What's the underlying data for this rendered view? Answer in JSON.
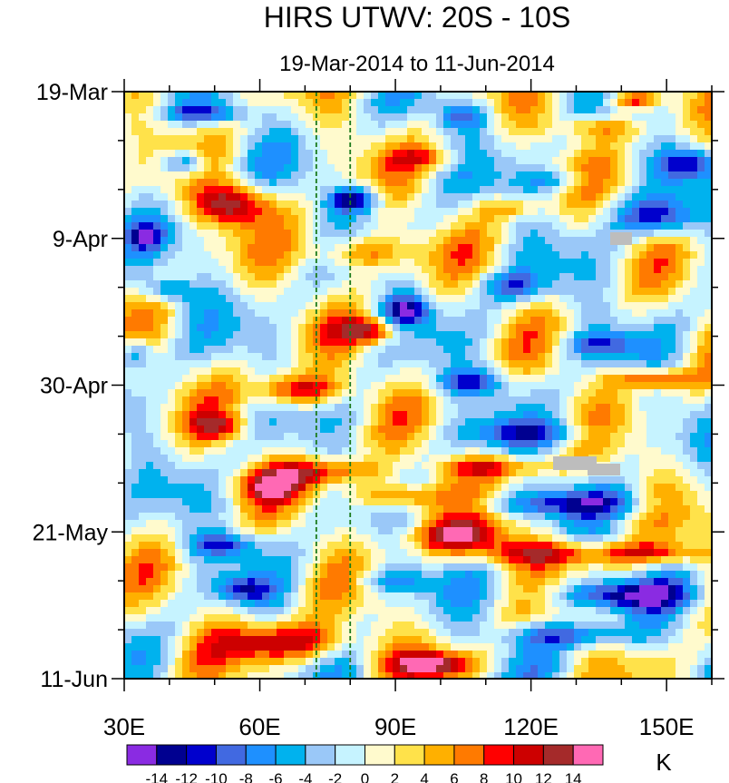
{
  "chart_data": {
    "type": "heatmap",
    "title": "HIRS UTWV: 20S - 10S",
    "subtitle": "19-Mar-2014 to 11-Jun-2014",
    "x_ticks": [
      {
        "label": "30E",
        "value": 30
      },
      {
        "label": "60E",
        "value": 60
      },
      {
        "label": "90E",
        "value": 90
      },
      {
        "label": "120E",
        "value": 120
      },
      {
        "label": "150E",
        "value": 150
      }
    ],
    "x_range": [
      30,
      160
    ],
    "y_ticks": [
      {
        "label": "19-Mar",
        "day": 0
      },
      {
        "label": "9-Apr",
        "day": 21
      },
      {
        "label": "30-Apr",
        "day": 42
      },
      {
        "label": "21-May",
        "day": 63
      },
      {
        "label": "11-Jun",
        "day": 84
      }
    ],
    "y_range_days": [
      0,
      84
    ],
    "reference_lines_lon": [
      72.5,
      80
    ],
    "colorbar": {
      "unit": "K",
      "labels": [
        "-14",
        "-12",
        "-10",
        "-8",
        "-6",
        "-4",
        "-2",
        "0",
        "2",
        "4",
        "6",
        "8",
        "10",
        "12",
        "14"
      ],
      "colors": [
        "#8a2be2",
        "#000090",
        "#0000cd",
        "#4169e1",
        "#1e90ff",
        "#00b2ee",
        "#9ac8f8",
        "#c6f3ff",
        "#fffacd",
        "#ffe24a",
        "#ffb000",
        "#ff7a00",
        "#ff0000",
        "#cd0000",
        "#a52a2a",
        "#ff69b4"
      ]
    }
  }
}
